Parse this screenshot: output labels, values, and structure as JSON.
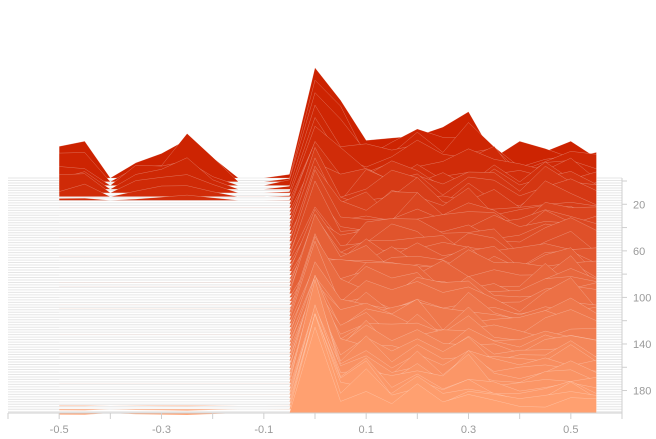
{
  "chart_data": {
    "type": "area",
    "subtype": "joyplot",
    "title": "",
    "xlabel": "",
    "ylabel": "",
    "xlim": [
      -0.6,
      0.6
    ],
    "ylim": [
      0,
      195
    ],
    "x_ticks": [
      "-0.5",
      "-0.3",
      "-0.1",
      "0.1",
      "0.3",
      "0.5"
    ],
    "x_tick_values": [
      -0.5,
      -0.3,
      -0.1,
      0.1,
      0.3,
      0.5
    ],
    "y_ticks": [
      "20",
      "60",
      "100",
      "140",
      "180"
    ],
    "y_tick_values": [
      20,
      60,
      100,
      140,
      180
    ],
    "grid": true,
    "legend": "none",
    "colors": {
      "back": "#cc2200",
      "front": "#ffa070",
      "grid": "#e6e6e6",
      "tick_text": "#9a9a9a"
    },
    "rows": 190,
    "x": [
      -0.5,
      -0.45,
      -0.4,
      -0.35,
      -0.3,
      -0.25,
      -0.2,
      -0.15,
      -0.1,
      -0.05,
      0.0,
      0.05,
      0.1,
      0.15,
      0.2,
      0.25,
      0.3,
      0.35,
      0.4,
      0.45,
      0.5,
      0.55
    ],
    "series_sample": [
      {
        "name": "",
        "row": 0,
        "values": [
          0.55,
          0.6,
          0,
          0.4,
          0.55,
          0.7,
          0.35,
          0,
          0,
          0.1,
          1.9,
          1.0,
          0.6,
          0.75,
          0.9,
          0.7,
          1.0,
          0.6,
          0.5,
          0.6,
          0.55,
          0.5
        ]
      },
      {
        "name": "",
        "row": 20,
        "values": [
          0,
          0,
          0,
          0,
          0,
          0,
          0,
          0,
          0,
          0,
          0.9,
          0.5,
          0.6,
          0.65,
          0.7,
          0.45,
          0.6,
          0.55,
          0.4,
          0.6,
          0.5,
          0.4
        ]
      },
      {
        "name": "",
        "row": 100,
        "values": [
          0,
          0,
          0,
          0,
          0,
          0,
          0,
          0,
          0,
          0,
          0.7,
          0.5,
          0.6,
          0.55,
          0.6,
          0.5,
          0.55,
          0.45,
          0.4,
          0.5,
          0.6,
          0.45
        ]
      },
      {
        "name": "",
        "row": 180,
        "values": [
          0,
          0,
          0,
          0,
          0,
          0,
          0,
          0,
          0,
          0,
          1.5,
          0.3,
          0.5,
          0.2,
          0.4,
          0.2,
          0.5,
          0.2,
          0.15,
          0.2,
          0.35,
          0.2
        ]
      }
    ]
  }
}
